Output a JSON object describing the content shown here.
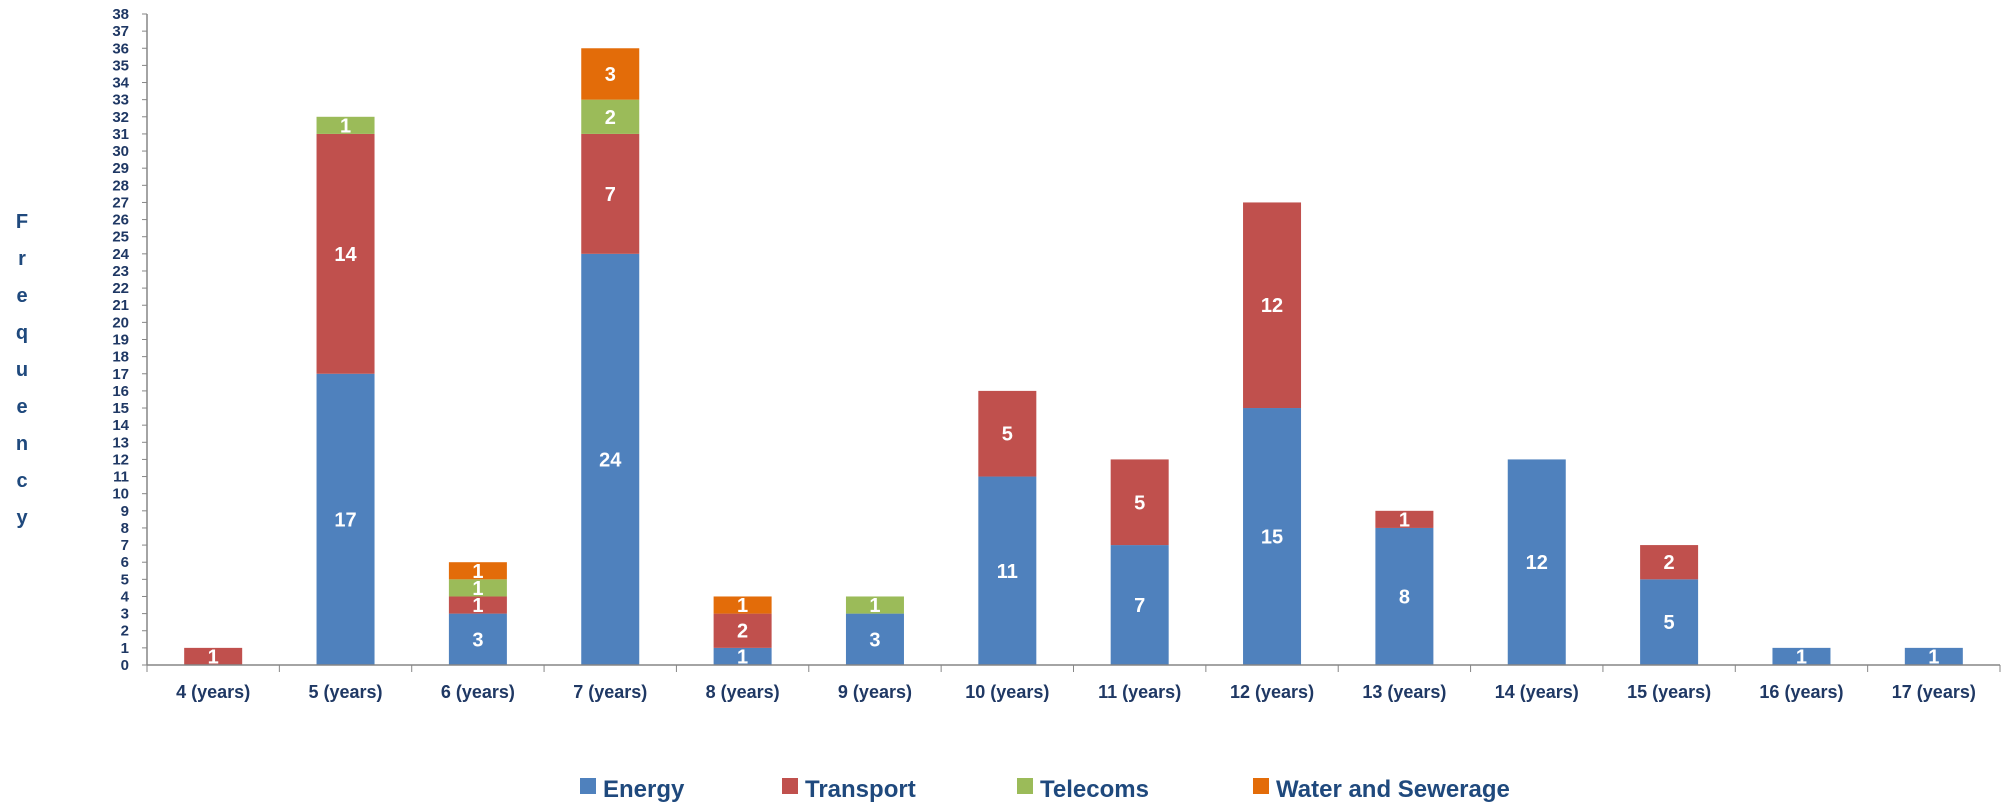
{
  "chart_data": {
    "type": "bar",
    "stacked": true,
    "title": "",
    "xlabel": "",
    "ylabel": "Frequency",
    "ylim": [
      0,
      38
    ],
    "yticks": [
      0,
      1,
      2,
      3,
      4,
      5,
      6,
      7,
      8,
      9,
      10,
      11,
      12,
      13,
      14,
      15,
      16,
      17,
      18,
      19,
      20,
      21,
      22,
      23,
      24,
      25,
      26,
      27,
      28,
      29,
      30,
      31,
      32,
      33,
      34,
      35,
      36,
      37,
      38
    ],
    "categories": [
      "4 (years)",
      "5 (years)",
      "6 (years)",
      "7 (years)",
      "8 (years)",
      "9 (years)",
      "10 (years)",
      "11 (years)",
      "12 (years)",
      "13 (years)",
      "14 (years)",
      "15 (years)",
      "16 (years)",
      "17 (years)"
    ],
    "series": [
      {
        "name": "Energy",
        "color": "#4f81bd",
        "values": [
          0,
          17,
          3,
          24,
          1,
          3,
          11,
          7,
          15,
          8,
          12,
          5,
          1,
          1
        ]
      },
      {
        "name": "Transport",
        "color": "#c0504d",
        "values": [
          1,
          14,
          1,
          7,
          2,
          0,
          5,
          5,
          12,
          1,
          0,
          2,
          0,
          0
        ]
      },
      {
        "name": "Telecoms",
        "color": "#9bbb59",
        "values": [
          0,
          1,
          1,
          2,
          0,
          1,
          0,
          0,
          0,
          0,
          0,
          0,
          0,
          0
        ]
      },
      {
        "name": "Water and Sewerage",
        "color": "#e36c09",
        "values": [
          0,
          0,
          1,
          3,
          1,
          0,
          0,
          0,
          0,
          0,
          0,
          0,
          0,
          0
        ]
      }
    ],
    "grid": false,
    "legend": "bottom"
  }
}
